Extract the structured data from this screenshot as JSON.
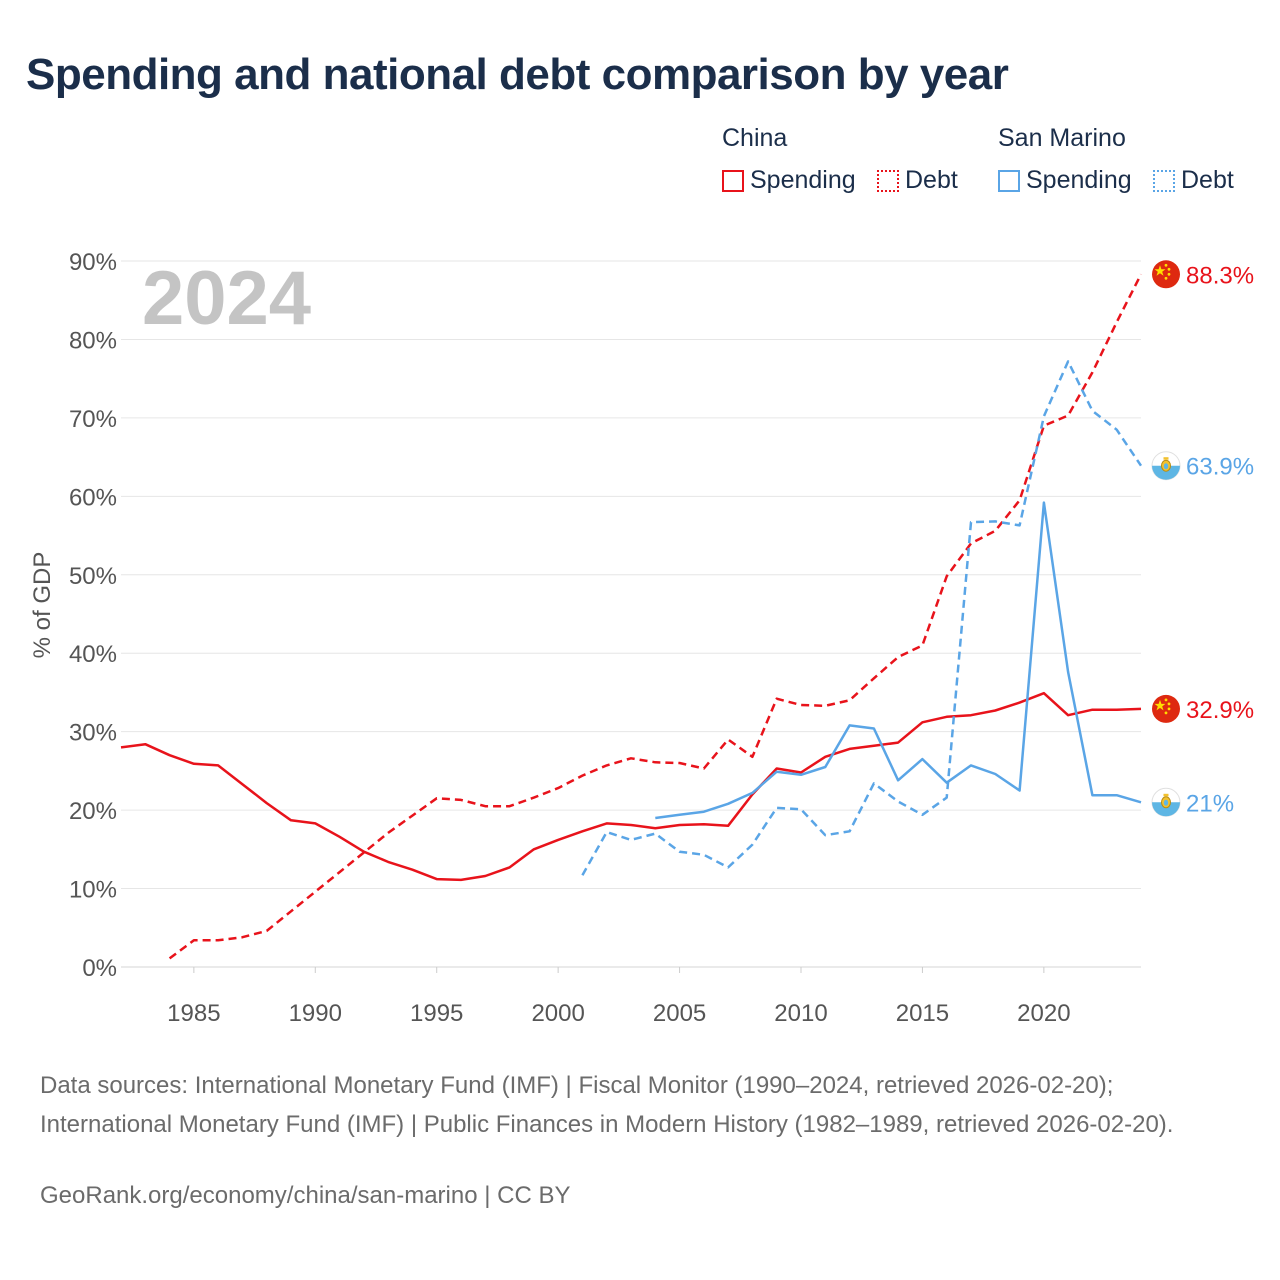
{
  "title": "Spending and national debt comparison by year",
  "legend": {
    "groups": [
      {
        "name": "China",
        "color": "#e8131b",
        "items": [
          {
            "label": "Spending",
            "style": "solid"
          },
          {
            "label": "Debt",
            "style": "dotted"
          }
        ]
      },
      {
        "name": "San Marino",
        "color": "#5aa5e6",
        "items": [
          {
            "label": "Spending",
            "style": "solid"
          },
          {
            "label": "Debt",
            "style": "dotted"
          }
        ]
      }
    ]
  },
  "chart_data": {
    "type": "line",
    "year_label": "2024",
    "ylabel": "% of GDP",
    "xlim": [
      1982,
      2024
    ],
    "ylim": [
      0,
      90
    ],
    "x_ticks": [
      1985,
      1990,
      1995,
      2000,
      2005,
      2010,
      2015,
      2020
    ],
    "y_ticks": [
      0,
      10,
      20,
      30,
      40,
      50,
      60,
      70,
      80,
      90
    ],
    "y_tick_suffix": "%",
    "series": [
      {
        "name": "China Spending",
        "country": "China",
        "metric": "Spending",
        "color": "#e8131b",
        "dashed": false,
        "end_label": "32.9%",
        "flag": "china-flag-icon",
        "points": [
          [
            1982,
            28.0
          ],
          [
            1983,
            28.4
          ],
          [
            1984,
            27.0
          ],
          [
            1985,
            25.9
          ],
          [
            1986,
            25.7
          ],
          [
            1987,
            23.3
          ],
          [
            1988,
            20.9
          ],
          [
            1989,
            18.7
          ],
          [
            1990,
            18.3
          ],
          [
            1991,
            16.6
          ],
          [
            1992,
            14.7
          ],
          [
            1993,
            13.4
          ],
          [
            1994,
            12.4
          ],
          [
            1995,
            11.2
          ],
          [
            1996,
            11.1
          ],
          [
            1997,
            11.6
          ],
          [
            1998,
            12.7
          ],
          [
            1999,
            15.0
          ],
          [
            2000,
            16.2
          ],
          [
            2001,
            17.3
          ],
          [
            2002,
            18.3
          ],
          [
            2003,
            18.1
          ],
          [
            2004,
            17.7
          ],
          [
            2005,
            18.1
          ],
          [
            2006,
            18.2
          ],
          [
            2007,
            18.0
          ],
          [
            2008,
            22.0
          ],
          [
            2009,
            25.3
          ],
          [
            2010,
            24.8
          ],
          [
            2011,
            26.8
          ],
          [
            2012,
            27.8
          ],
          [
            2013,
            28.2
          ],
          [
            2014,
            28.6
          ],
          [
            2015,
            31.2
          ],
          [
            2016,
            31.9
          ],
          [
            2017,
            32.1
          ],
          [
            2018,
            32.7
          ],
          [
            2019,
            33.7
          ],
          [
            2020,
            34.9
          ],
          [
            2021,
            32.1
          ],
          [
            2022,
            32.8
          ],
          [
            2023,
            32.8
          ],
          [
            2024,
            32.9
          ]
        ]
      },
      {
        "name": "China Debt",
        "country": "China",
        "metric": "Debt",
        "color": "#e8131b",
        "dashed": true,
        "end_label": "88.3%",
        "flag": "china-flag-icon",
        "points": [
          [
            1984,
            1.1
          ],
          [
            1985,
            3.4
          ],
          [
            1986,
            3.4
          ],
          [
            1987,
            3.8
          ],
          [
            1988,
            4.6
          ],
          [
            1989,
            7.1
          ],
          [
            1990,
            9.6
          ],
          [
            1991,
            12.1
          ],
          [
            1992,
            14.6
          ],
          [
            1993,
            17.1
          ],
          [
            1994,
            19.3
          ],
          [
            1995,
            21.5
          ],
          [
            1996,
            21.3
          ],
          [
            1997,
            20.5
          ],
          [
            1998,
            20.5
          ],
          [
            1999,
            21.6
          ],
          [
            2000,
            22.8
          ],
          [
            2001,
            24.4
          ],
          [
            2002,
            25.7
          ],
          [
            2003,
            26.6
          ],
          [
            2004,
            26.1
          ],
          [
            2005,
            26.0
          ],
          [
            2006,
            25.3
          ],
          [
            2007,
            29.0
          ],
          [
            2008,
            26.8
          ],
          [
            2009,
            34.2
          ],
          [
            2010,
            33.4
          ],
          [
            2011,
            33.3
          ],
          [
            2012,
            34.0
          ],
          [
            2013,
            36.8
          ],
          [
            2014,
            39.5
          ],
          [
            2015,
            41.0
          ],
          [
            2016,
            49.8
          ],
          [
            2017,
            54.0
          ],
          [
            2018,
            55.6
          ],
          [
            2019,
            59.5
          ],
          [
            2020,
            69.0
          ],
          [
            2021,
            70.3
          ],
          [
            2022,
            75.8
          ],
          [
            2023,
            82.2
          ],
          [
            2024,
            88.3
          ]
        ]
      },
      {
        "name": "San Marino Spending",
        "country": "San Marino",
        "metric": "Spending",
        "color": "#5aa5e6",
        "dashed": false,
        "end_label": "21%",
        "flag": "san-marino-flag-icon",
        "points": [
          [
            2004,
            19.0
          ],
          [
            2005,
            19.4
          ],
          [
            2006,
            19.8
          ],
          [
            2007,
            20.8
          ],
          [
            2008,
            22.2
          ],
          [
            2009,
            24.9
          ],
          [
            2010,
            24.5
          ],
          [
            2011,
            25.5
          ],
          [
            2012,
            30.8
          ],
          [
            2013,
            30.4
          ],
          [
            2014,
            23.8
          ],
          [
            2015,
            26.5
          ],
          [
            2016,
            23.5
          ],
          [
            2017,
            25.7
          ],
          [
            2018,
            24.6
          ],
          [
            2019,
            22.5
          ],
          [
            2020,
            59.2
          ],
          [
            2021,
            37.6
          ],
          [
            2022,
            21.9
          ],
          [
            2023,
            21.9
          ],
          [
            2024,
            21.0
          ]
        ]
      },
      {
        "name": "San Marino Debt",
        "country": "San Marino",
        "metric": "Debt",
        "color": "#5aa5e6",
        "dashed": true,
        "end_label": "63.9%",
        "flag": "san-marino-flag-icon",
        "points": [
          [
            2001,
            11.7
          ],
          [
            2002,
            17.2
          ],
          [
            2003,
            16.2
          ],
          [
            2004,
            17.0
          ],
          [
            2005,
            14.7
          ],
          [
            2006,
            14.3
          ],
          [
            2007,
            12.7
          ],
          [
            2008,
            15.6
          ],
          [
            2009,
            20.3
          ],
          [
            2010,
            20.1
          ],
          [
            2011,
            16.8
          ],
          [
            2012,
            17.3
          ],
          [
            2013,
            23.4
          ],
          [
            2014,
            21.1
          ],
          [
            2015,
            19.4
          ],
          [
            2016,
            21.6
          ],
          [
            2017,
            56.7
          ],
          [
            2018,
            56.8
          ],
          [
            2019,
            56.3
          ],
          [
            2020,
            70.2
          ],
          [
            2021,
            77.2
          ],
          [
            2022,
            70.9
          ],
          [
            2023,
            68.5
          ],
          [
            2024,
            63.9
          ]
        ]
      }
    ]
  },
  "footer": {
    "sources": "Data sources: International Monetary Fund (IMF) | Fiscal Monitor (1990–2024, retrieved 2026-02-20); International Monetary Fund (IMF) | Public Finances in Modern History (1982–1989, retrieved 2026-02-20).",
    "credit": "GeoRank.org/economy/china/san-marino | CC BY"
  }
}
